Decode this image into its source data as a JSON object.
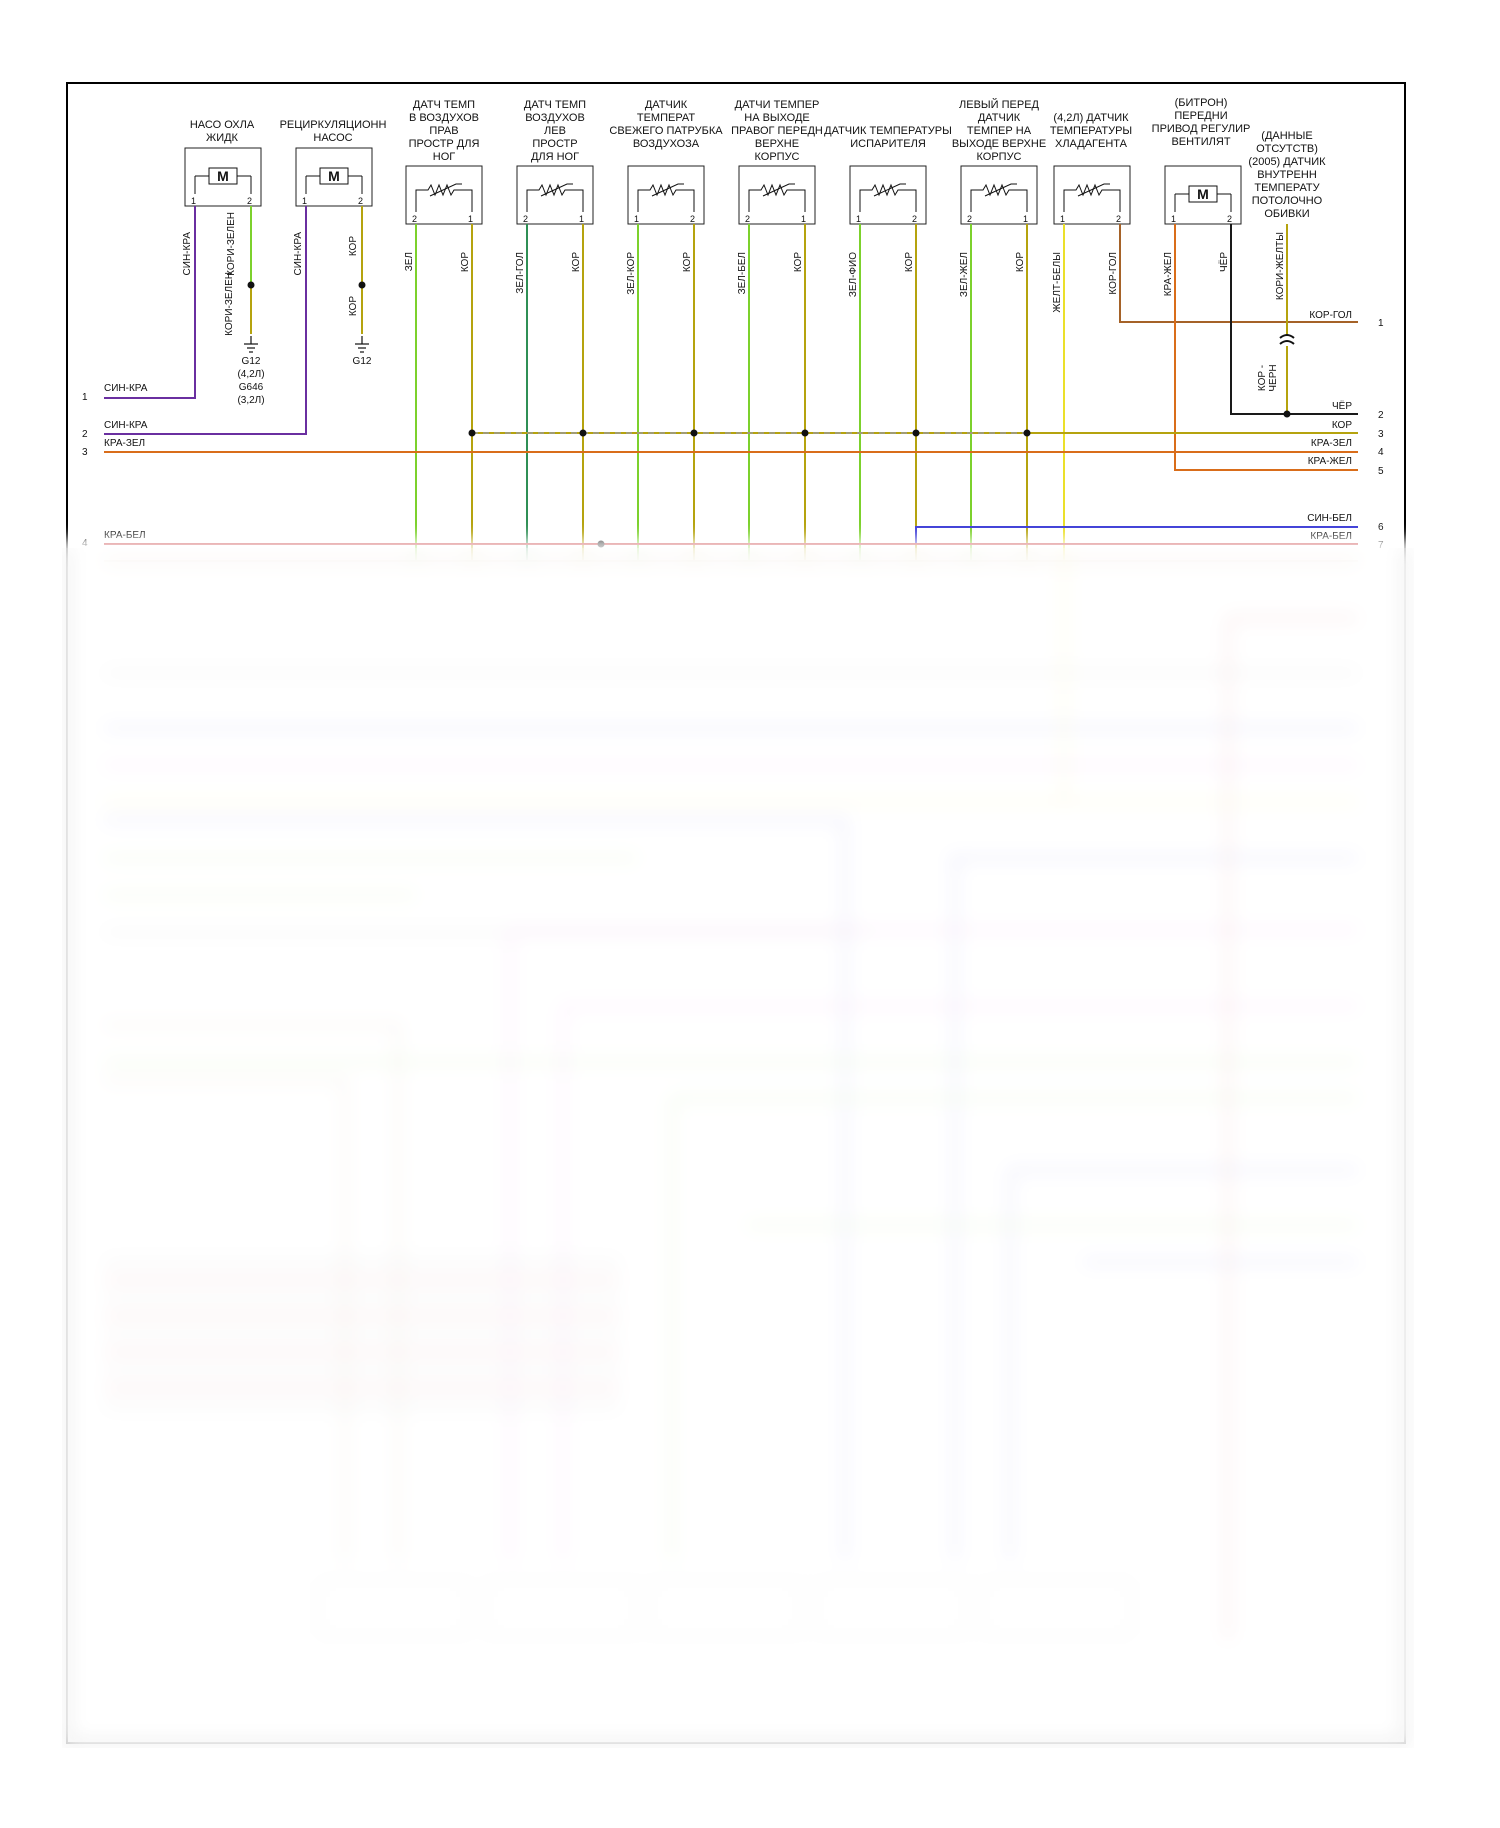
{
  "components": [
    {
      "label": "НАСО ОХЛА\nЖИДК",
      "kind": "motor",
      "pins": [
        "1",
        "2"
      ]
    },
    {
      "label": "РЕЦИРКУЛЯЦИОНН\nНАСОС",
      "kind": "motor",
      "pins": [
        "1",
        "2"
      ]
    },
    {
      "label": "ДАТЧ ТЕМП\nВ ВОЗДУХОВ\nПРАВ\nПРОСТР ДЛЯ\nНОГ",
      "kind": "sensor",
      "pins": [
        "2",
        "1"
      ]
    },
    {
      "label": "ДАТЧ ТЕМП\nВОЗДУХОВ\nЛЕВ\nПРОСТР\nДЛЯ НОГ",
      "kind": "sensor",
      "pins": [
        "2",
        "1"
      ]
    },
    {
      "label": "ДАТЧИК\nТЕМПЕРАТ\nСВЕЖЕГО ПАТРУБКА\nВОЗДУХОЗА",
      "kind": "sensor",
      "pins": [
        "1",
        "2"
      ]
    },
    {
      "label": "ДАТЧИ ТЕМПЕР\nНА ВЫХОДЕ\nПРАВОГ ПЕРЕДН\nВЕРХНЕ\nКОРПУС",
      "kind": "sensor",
      "pins": [
        "2",
        "1"
      ]
    },
    {
      "label": "ДАТЧИК ТЕМПЕРАТУРЫ\nИСПАРИТЕЛЯ",
      "kind": "sensor",
      "pins": [
        "1",
        "2"
      ]
    },
    {
      "label": "ЛЕВЫЙ ПЕРЕД\nДАТЧИК\nТЕМПЕР НА\nВЫХОДЕ ВЕРХНЕ\nКОРПУС",
      "kind": "sensor",
      "pins": [
        "2",
        "1"
      ]
    },
    {
      "label": "(4,2Л) ДАТЧИК\nТЕМПЕРАТУРЫ\nХЛАДАГЕНТА",
      "kind": "sensor",
      "pins": [
        "1",
        "2"
      ]
    },
    {
      "label": "(БИТРОН)\nПЕРЕДНИ\nПРИВОД РЕГУЛИР\nВЕНТИЛЯТ",
      "kind": "motor",
      "pins": [
        "1",
        "2"
      ]
    },
    {
      "label": "(ДАННЫЕ\nОТСУТСТВ)\n(2005) ДАТЧИК\nВНУТРЕНН\nТЕМПЕРАТУ\nПОТОЛОЧНО\nОБИВКИ",
      "kind": "none",
      "pins": []
    }
  ],
  "wire_labels": {
    "pump_1": "СИН-КРА",
    "pump_2": "КОРИ-ЗЕЛЕН",
    "pump_2b": "КОРИ-ЗЕЛЕН",
    "recirc_1": "СИН-КРА",
    "recirc_2": "КОР",
    "recirc_2b": "КОР",
    "rfoot_2": "ЗЕЛ",
    "rfoot_1": "КОР",
    "lfoot_2": "ЗЕЛ-ГОЛ",
    "lfoot_1": "КОР",
    "fresh_1": "ЗЕЛ-КОР",
    "fresh_2": "КОР",
    "rfront_2": "ЗЕЛ-БЕЛ",
    "rfront_1": "КОР",
    "evap_1": "ЗЕЛ-ФИО",
    "evap_2": "КОР",
    "lfront_2": "ЗЕЛ-ЖЕЛ",
    "lfront_1": "КОР",
    "coolant_1": "ЖЕЛТ-БЕЛЫ",
    "coolant_2": "КОР-ГОЛ",
    "blower_1": "КРА-ЖЕЛ",
    "blower_2": "ЧЁР",
    "headliner": "КОРИ-ЖЕЛТЫ",
    "kor_chern": "КОР -\nЧЕРН"
  },
  "grounds": [
    {
      "label": "G12\n(4,2Л)\nG646\n(3,2Л)"
    },
    {
      "label": "G12"
    }
  ],
  "left_connector": [
    {
      "pin": "1",
      "label": "СИН-КРА"
    },
    {
      "pin": "2",
      "label": "СИН-КРА"
    },
    {
      "pin": "3",
      "label": "КРА-ЗЕЛ"
    },
    {
      "pin": "4",
      "label": "КРА-БЕЛ"
    }
  ],
  "right_connector": [
    {
      "pin": "1",
      "label": "КОР-ГОЛ"
    },
    {
      "pin": "2",
      "label": "ЧЁР"
    },
    {
      "pin": "",
      "label": "КОР"
    },
    {
      "pin": "3",
      "label": "КРА-ЗЕЛ"
    },
    {
      "pin": "4",
      "label": "КРА-ЖЕЛ"
    },
    {
      "pin": "5",
      "label": ""
    },
    {
      "pin": "6",
      "label": "СИН-БЕЛ"
    },
    {
      "pin": "7",
      "label": "КРА-БЕЛ"
    }
  ],
  "extra_pin": "3",
  "colors": {
    "purple": "#6a2fa0",
    "olive": "#b5a30e",
    "lightgreen": "#7cd12c",
    "darkgreen": "#2f8f55",
    "orange": "#d96d1a",
    "red": "#c0282c",
    "brown": "#a56228",
    "blue": "#3a3ad6",
    "yellow": "#ebe02a",
    "black": "#1a1a1a",
    "tan": "#b08f6a",
    "gray": "#8a8a8a",
    "pink": "#e455e4"
  }
}
